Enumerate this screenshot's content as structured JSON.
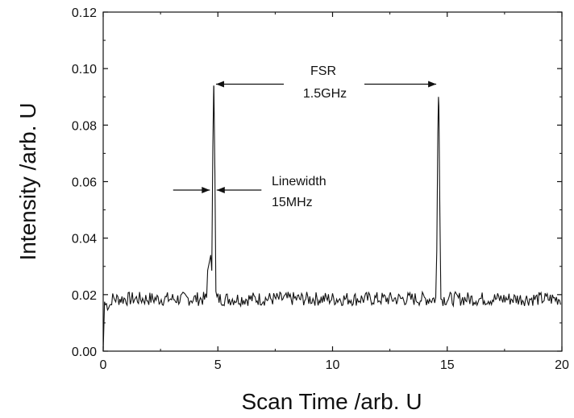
{
  "chart_data": {
    "type": "line",
    "title": "",
    "xlabel": "Scan Time /arb. U",
    "ylabel": "Intensity /arb. U",
    "xlim": [
      0,
      20
    ],
    "ylim": [
      0,
      0.12
    ],
    "xticks": [
      0,
      5,
      10,
      15,
      20
    ],
    "xtick_labels": [
      "0",
      "5",
      "10",
      "15",
      "20"
    ],
    "yticks": [
      0,
      0.02,
      0.04,
      0.06,
      0.08,
      0.1,
      0.12
    ],
    "ytick_labels": [
      "0.00",
      "0.02",
      "0.04",
      "0.06",
      "0.08",
      "0.10",
      "0.12"
    ],
    "grid": false,
    "legend": "none",
    "series": [
      {
        "baseline": 0.0185,
        "noise_amplitude": 0.0025,
        "start_point": [
          0.0,
          0.0
        ],
        "peaks": [
          {
            "x": 4.82,
            "y": 0.094,
            "shoulder_y": 0.034
          },
          {
            "x": 14.62,
            "y": 0.09
          }
        ]
      }
    ],
    "annotations": {
      "fsr_label": "FSR",
      "fsr_value": "1.5GHz",
      "fsr_arrow_x": [
        4.92,
        14.52
      ],
      "fsr_arrow_y": 0.0945,
      "linewidth_label": "Linewidth",
      "linewidth_value": "15MHz",
      "linewidth_arrow_y": 0.057,
      "linewidth_left_arrow_x": [
        3.05,
        4.65
      ],
      "linewidth_right_arrow_x": [
        4.95,
        6.9
      ]
    },
    "colors": {
      "line": "#111111",
      "axis": "#111111"
    }
  }
}
